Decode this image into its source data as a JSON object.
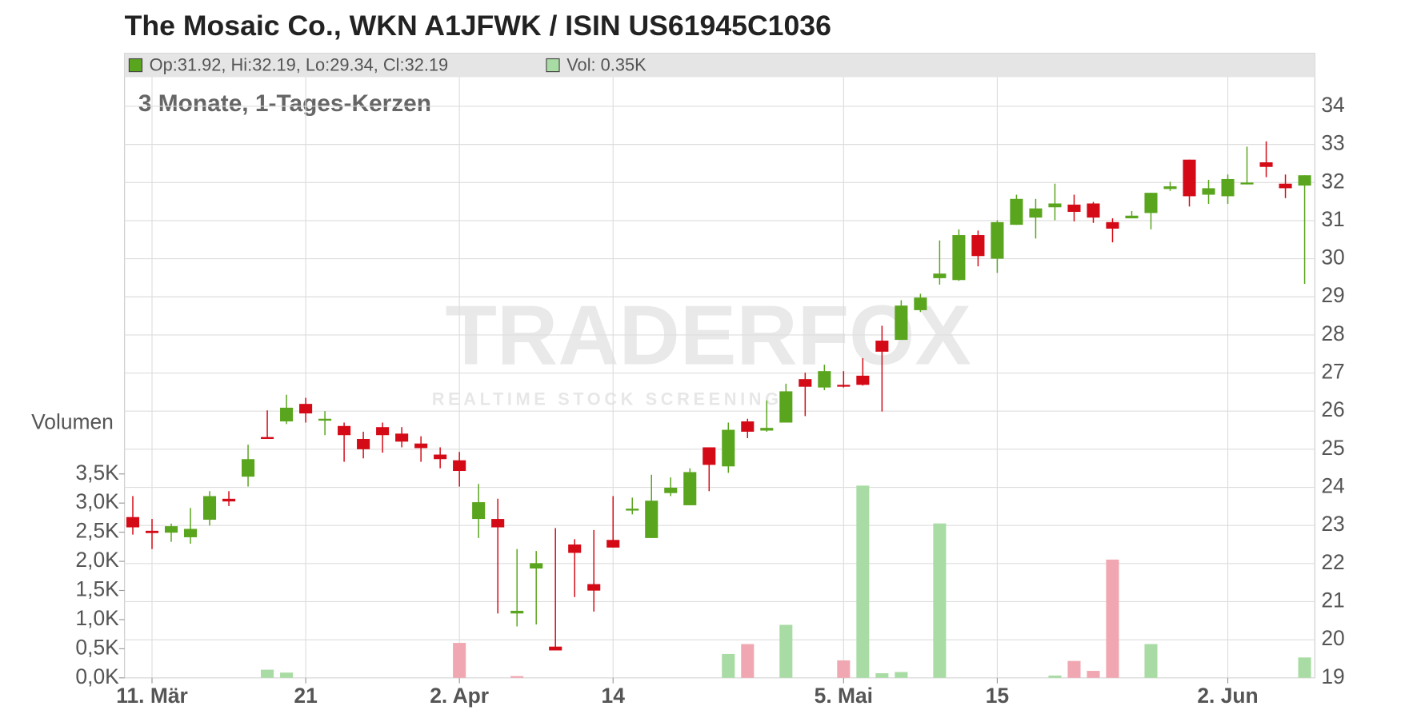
{
  "chart_data": {
    "type": "candlestick",
    "title": "The Mosaic Co., WKN A1JFWK / ISIN US61945C1036",
    "subtitle": "3 Monate, 1-Tages-Kerzen",
    "legend_ohlc": "Op:31.92, Hi:32.19, Lo:29.34, Cl:32.19",
    "legend_volume": "Vol: 0.35K",
    "volume_axis_label": "Volumen",
    "watermark": "TRADERFOX",
    "watermark_sub": "REALTIME STOCK SCREENING",
    "up_color": "#5aa51e",
    "down_color": "#d40a16",
    "volume_up_color": "#a9dca4",
    "volume_down_color": "#f0a7b1",
    "grid": true,
    "categories": [
      null,
      null,
      null,
      null,
      null,
      null,
      null,
      null,
      null,
      null,
      null,
      null,
      null,
      null,
      null,
      null,
      null,
      null,
      null,
      null,
      null,
      null,
      null,
      null,
      null,
      null,
      null,
      null,
      null,
      null,
      null,
      null,
      null,
      null,
      null,
      null,
      null,
      null,
      null,
      null,
      null,
      null,
      null,
      null,
      null,
      null,
      null,
      null,
      null,
      null,
      null,
      null,
      null,
      null,
      null,
      null,
      null,
      null,
      null,
      null,
      null,
      null
    ],
    "xticks": [
      {
        "value": 1,
        "label": "11. Mär"
      },
      {
        "value": 9,
        "label": "21"
      },
      {
        "value": 17,
        "label": "2. Apr"
      },
      {
        "value": 25,
        "label": "14"
      },
      {
        "value": 37,
        "label": "5. Mai"
      },
      {
        "value": 45,
        "label": "15"
      },
      {
        "value": 57,
        "label": "2. Jun"
      }
    ],
    "open": [
      23.22,
      22.86,
      22.81,
      22.69,
      23.15,
      23.7,
      24.28,
      25.32,
      25.73,
      26.19,
      25.75,
      25.61,
      25.27,
      25.58,
      25.41,
      25.15,
      24.86,
      24.71,
      23.17,
      23.17,
      20.69,
      21.87,
      19.82,
      22.5,
      21.46,
      22.62,
      23.39,
      22.67,
      23.85,
      23.53,
      25.05,
      24.55,
      25.73,
      25.49,
      25.7,
      26.84,
      26.62,
      26.69,
      26.93,
      27.85,
      27.87,
      28.65,
      29.49,
      29.44,
      30.62,
      30.0,
      30.89,
      31.08,
      31.35,
      31.42,
      31.45,
      30.96,
      31.06,
      31.2,
      31.83,
      32.6,
      31.68,
      31.64,
      31.95,
      32.53,
      31.97,
      31.92
    ],
    "high": [
      23.77,
      23.17,
      23.05,
      23.46,
      23.9,
      23.9,
      25.12,
      26.02,
      26.43,
      26.35,
      26.0,
      25.7,
      25.46,
      25.7,
      25.58,
      25.34,
      25.05,
      24.93,
      24.09,
      23.7,
      22.38,
      22.33,
      22.93,
      22.64,
      22.88,
      23.77,
      23.73,
      24.33,
      24.26,
      24.5,
      25.05,
      25.7,
      25.8,
      26.28,
      26.72,
      27.01,
      27.22,
      27.05,
      27.39,
      28.24,
      28.91,
      29.08,
      30.48,
      30.77,
      30.74,
      31.01,
      31.68,
      31.57,
      31.97,
      31.68,
      31.49,
      31.06,
      31.25,
      31.73,
      32.02,
      32.6,
      32.07,
      32.21,
      32.94,
      33.08,
      32.21,
      32.19
    ],
    "low": [
      22.76,
      22.38,
      22.57,
      22.52,
      23.0,
      23.51,
      24.02,
      25.27,
      25.66,
      25.7,
      25.37,
      24.67,
      24.76,
      24.91,
      25.05,
      24.67,
      24.5,
      24.02,
      22.67,
      20.69,
      20.35,
      20.4,
      19.72,
      21.12,
      20.74,
      22.42,
      23.29,
      22.67,
      23.77,
      23.53,
      23.9,
      24.38,
      25.29,
      25.46,
      25.7,
      25.87,
      26.55,
      26.62,
      26.67,
      25.99,
      27.87,
      28.6,
      29.32,
      29.42,
      29.8,
      29.63,
      30.89,
      30.53,
      31.01,
      30.98,
      30.94,
      30.43,
      31.06,
      30.77,
      31.78,
      31.37,
      31.44,
      31.44,
      31.95,
      32.14,
      31.59,
      29.34
    ],
    "close": [
      22.95,
      22.8,
      22.98,
      22.91,
      23.77,
      23.63,
      24.74,
      25.27,
      26.09,
      25.94,
      25.8,
      25.37,
      25.0,
      25.37,
      25.2,
      25.03,
      24.74,
      24.43,
      23.61,
      22.95,
      20.76,
      22.01,
      19.72,
      22.28,
      21.29,
      22.42,
      23.44,
      23.65,
      23.99,
      24.4,
      24.59,
      25.51,
      25.46,
      25.56,
      26.52,
      26.64,
      27.05,
      26.67,
      26.69,
      27.56,
      28.77,
      28.98,
      29.61,
      30.62,
      30.07,
      30.96,
      31.57,
      31.32,
      31.45,
      31.23,
      31.08,
      30.79,
      31.13,
      31.73,
      31.9,
      31.64,
      31.85,
      32.09,
      32.0,
      32.41,
      31.85,
      32.19
    ],
    "volume": [
      0,
      0,
      0,
      0,
      0,
      0,
      0,
      0.14,
      0.09,
      0,
      0,
      0,
      0,
      0,
      0,
      0,
      0,
      0.6,
      0,
      0,
      0.03,
      0,
      0,
      0,
      0,
      0,
      0,
      0,
      0,
      0,
      0,
      0.41,
      0.58,
      0,
      0.91,
      0,
      0,
      0.3,
      3.3,
      0.08,
      0.1,
      0,
      2.65,
      0,
      0,
      0,
      0,
      0,
      0.04,
      0.29,
      0.12,
      2.03,
      0,
      0.58,
      0,
      0,
      0,
      0,
      0,
      0,
      0,
      0.35
    ],
    "ylim": [
      19,
      34.5
    ],
    "yticks": [
      19,
      20,
      21,
      22,
      23,
      24,
      25,
      26,
      27,
      28,
      29,
      30,
      31,
      32,
      33,
      34
    ],
    "y2lim": [
      0,
      3.5
    ],
    "y2ticks": [
      {
        "value": 0,
        "label": "0,0K"
      },
      {
        "value": 0.5,
        "label": "0,5K"
      },
      {
        "value": 1,
        "label": "1,0K"
      },
      {
        "value": 1.5,
        "label": "1,5K"
      },
      {
        "value": 2,
        "label": "2,0K"
      },
      {
        "value": 2.5,
        "label": "2,5K"
      },
      {
        "value": 3,
        "label": "3,0K"
      },
      {
        "value": 3.5,
        "label": "3,5K"
      }
    ]
  }
}
